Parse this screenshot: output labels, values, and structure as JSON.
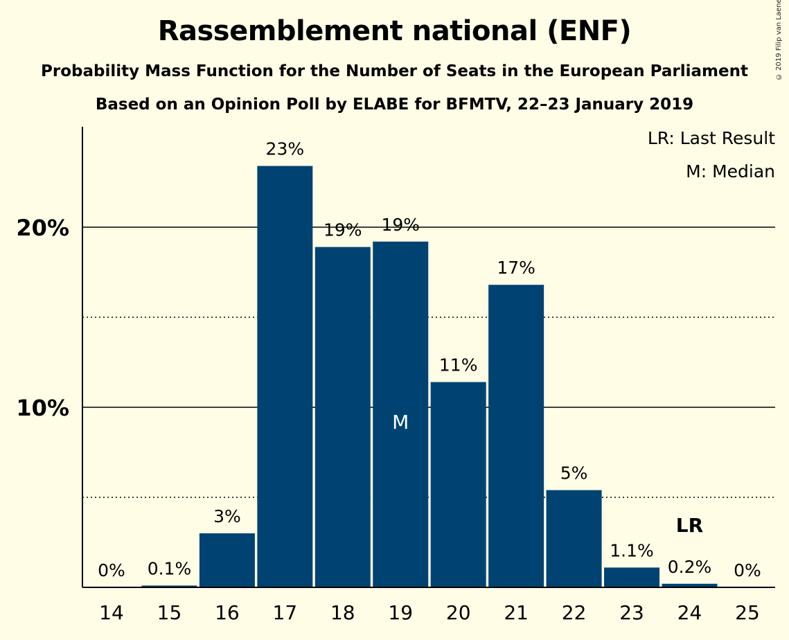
{
  "title": "Rassemblement national (ENF)",
  "subtitle_1": "Probability Mass Function for the Number of Seats in the European Parliament",
  "subtitle_2": "Based on an Opinion Poll by ELABE for BFMTV, 22–23 January 2019",
  "copyright": "© 2019 Filip van Laenen",
  "legend": {
    "last_result": "LR: Last Result",
    "median": "M: Median"
  },
  "colors": {
    "bar": "#004372",
    "background": "#fffde6"
  },
  "chart_data": {
    "type": "bar",
    "categories": [
      "14",
      "15",
      "16",
      "17",
      "18",
      "19",
      "20",
      "21",
      "22",
      "23",
      "24",
      "25"
    ],
    "values": [
      0,
      0.1,
      3.0,
      23.4,
      18.9,
      19.2,
      11.4,
      16.8,
      5.4,
      1.1,
      0.2,
      0
    ],
    "data_labels": [
      "0%",
      "0.1%",
      "3%",
      "23%",
      "19%",
      "19%",
      "11%",
      "17%",
      "5%",
      "1.1%",
      "0.2%",
      "0%"
    ],
    "yticks": [
      {
        "value": 10,
        "label": "10%"
      },
      {
        "value": 20,
        "label": "20%"
      }
    ],
    "dotted_gridlines": [
      5,
      15
    ],
    "ylim": [
      0,
      25.5
    ],
    "median_category": "19",
    "median_label": "M",
    "last_result_category": "24",
    "last_result_label": "LR",
    "legend_position": "top-right",
    "grid": true
  }
}
